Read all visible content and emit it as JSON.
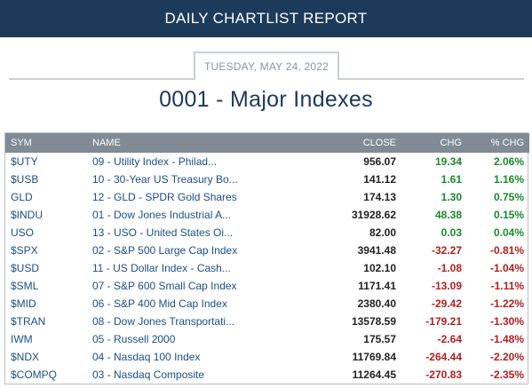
{
  "header": {
    "title": "DAILY CHARTLIST REPORT"
  },
  "report": {
    "date": "TUESDAY, MAY 24, 2022",
    "list_title": "0001 - Major Indexes"
  },
  "table": {
    "columns": {
      "sym": "SYM",
      "name": "NAME",
      "close": "CLOSE",
      "chg": "CHG",
      "pct": "% CHG"
    },
    "rows": [
      {
        "sym": "$UTY",
        "name": "09 - Utility Index - Philad...",
        "close": "956.07",
        "chg": "19.34",
        "pct": "2.06%",
        "dir": "pos"
      },
      {
        "sym": "$USB",
        "name": "10 - 30-Year US Treasury Bo...",
        "close": "141.12",
        "chg": "1.61",
        "pct": "1.16%",
        "dir": "pos"
      },
      {
        "sym": "GLD",
        "name": "12 - GLD - SPDR Gold Shares",
        "close": "174.13",
        "chg": "1.30",
        "pct": "0.75%",
        "dir": "pos"
      },
      {
        "sym": "$INDU",
        "name": "01 - Dow Jones Industrial A...",
        "close": "31928.62",
        "chg": "48.38",
        "pct": "0.15%",
        "dir": "pos"
      },
      {
        "sym": "USO",
        "name": "13 - USO - United States Oi...",
        "close": "82.00",
        "chg": "0.03",
        "pct": "0.04%",
        "dir": "pos"
      },
      {
        "sym": "$SPX",
        "name": "02 - S&P 500 Large Cap Index",
        "close": "3941.48",
        "chg": "-32.27",
        "pct": "-0.81%",
        "dir": "neg"
      },
      {
        "sym": "$USD",
        "name": "11 - US Dollar Index - Cash...",
        "close": "102.10",
        "chg": "-1.08",
        "pct": "-1.04%",
        "dir": "neg"
      },
      {
        "sym": "$SML",
        "name": "07 - S&P 600 Small Cap Index",
        "close": "1171.41",
        "chg": "-13.09",
        "pct": "-1.11%",
        "dir": "neg"
      },
      {
        "sym": "$MID",
        "name": "06 - S&P 400 Mid Cap Index",
        "close": "2380.40",
        "chg": "-29.42",
        "pct": "-1.22%",
        "dir": "neg"
      },
      {
        "sym": "$TRAN",
        "name": "08 - Dow Jones Transportati...",
        "close": "13578.59",
        "chg": "-179.21",
        "pct": "-1.30%",
        "dir": "neg"
      },
      {
        "sym": "IWM",
        "name": "05 - Russell 2000",
        "close": "175.57",
        "chg": "-2.64",
        "pct": "-1.48%",
        "dir": "neg"
      },
      {
        "sym": "$NDX",
        "name": "04 - Nasdaq 100 Index",
        "close": "11769.84",
        "chg": "-264.44",
        "pct": "-2.20%",
        "dir": "neg"
      },
      {
        "sym": "$COMPQ",
        "name": "03 - Nasdaq Composite",
        "close": "11264.45",
        "chg": "-270.83",
        "pct": "-2.35%",
        "dir": "neg"
      }
    ]
  },
  "colors": {
    "header_bg": "#1c3a5a",
    "positive": "#1a8a2a",
    "negative": "#b02020",
    "link": "#1c4f86"
  }
}
